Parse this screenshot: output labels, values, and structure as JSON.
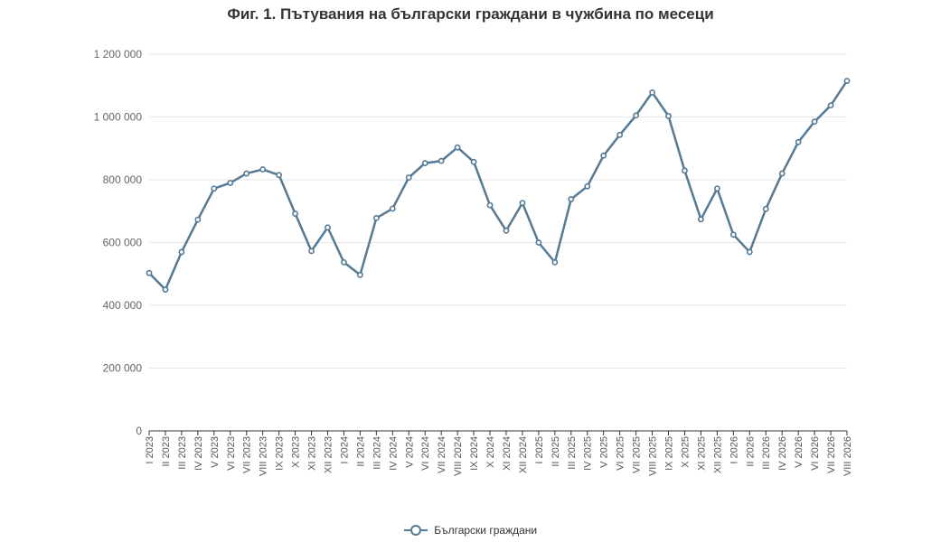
{
  "chart_data": {
    "type": "line",
    "title": "Фиг. 1. Пътувания на български граждани в чужбина по месеци",
    "xlabel": "",
    "ylabel": "",
    "ylim": [
      0,
      1200000
    ],
    "yticks": [
      0,
      200000,
      400000,
      600000,
      800000,
      1000000,
      1200000
    ],
    "ytick_labels": [
      "0",
      "200 000",
      "400 000",
      "600 000",
      "800 000",
      "1 000 000",
      "1 200 000"
    ],
    "grid": true,
    "legend_position": "bottom-center",
    "line_color": "#557a95",
    "categories": [
      "I 2023",
      "II 2023",
      "III 2023",
      "IV 2023",
      "V 2023",
      "VI 2023",
      "VII 2023",
      "VIII 2023",
      "IX 2023",
      "X 2023",
      "XI 2023",
      "XII 2023",
      "I 2024",
      "II 2024",
      "III 2024",
      "IV 2024",
      "V 2024",
      "VI 2024",
      "VII 2024",
      "VIII 2024",
      "IX 2024",
      "X 2024",
      "XI 2024",
      "XII 2024",
      "I 2025",
      "II 2025",
      "III 2025",
      "IV 2025",
      "V 2025",
      "VI 2025",
      "VII 2025",
      "VIII 2025",
      "IX 2025",
      "X 2025",
      "XI 2025",
      "XII 2025",
      "I 2026",
      "II 2026",
      "III 2026",
      "IV 2026",
      "V 2026",
      "VI 2026",
      "VII 2026",
      "VIII 2026"
    ],
    "series": [
      {
        "name": "Български граждани",
        "values": [
          503000,
          450000,
          570000,
          673000,
          772000,
          790000,
          820000,
          833000,
          815000,
          692000,
          573000,
          648000,
          537000,
          497000,
          678000,
          708000,
          807000,
          853000,
          860000,
          903000,
          857000,
          719000,
          638000,
          726000,
          600000,
          537000,
          738000,
          779000,
          877000,
          943000,
          1005000,
          1078000,
          1003000,
          829000,
          674000,
          772000,
          625000,
          570000,
          707000,
          820000,
          920000,
          985000,
          1037000,
          1115000
        ]
      }
    ]
  }
}
